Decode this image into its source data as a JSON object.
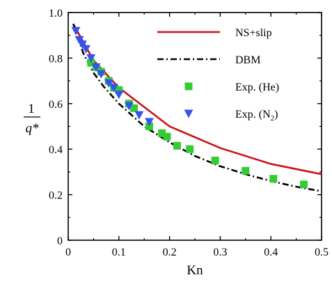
{
  "chart_data": {
    "type": "line",
    "xlabel": "Kn",
    "ylabel_numerator": "1",
    "ylabel_denominator": "q*",
    "xlim": [
      0,
      0.5
    ],
    "ylim": [
      0,
      1.0
    ],
    "x_ticks": [
      "0",
      "0.1",
      "0.2",
      "0.3",
      "0.4",
      "0.5"
    ],
    "y_ticks": [
      "0",
      "0.2",
      "0.4",
      "0.6",
      "0.8",
      "1.0"
    ],
    "legend_position": "top-right",
    "grid": false,
    "series": [
      {
        "name": "NS+slip",
        "style": "line",
        "color": "#cc1111",
        "x": [
          0.01,
          0.05,
          0.1,
          0.2,
          0.3,
          0.4,
          0.5
        ],
        "y": [
          0.95,
          0.79,
          0.67,
          0.5,
          0.405,
          0.335,
          0.29
        ]
      },
      {
        "name": "DBM",
        "style": "dash-dot",
        "color": "#000000",
        "x": [
          0.01,
          0.03,
          0.05,
          0.07,
          0.1,
          0.15,
          0.2,
          0.25,
          0.3,
          0.35,
          0.4,
          0.45,
          0.5
        ],
        "y": [
          0.95,
          0.82,
          0.735,
          0.675,
          0.6,
          0.5,
          0.43,
          0.37,
          0.325,
          0.29,
          0.26,
          0.235,
          0.215
        ]
      },
      {
        "name": "Exp. (He)",
        "style": "square",
        "color": "#33cc33",
        "x": [
          0.045,
          0.055,
          0.065,
          0.08,
          0.09,
          0.1,
          0.12,
          0.13,
          0.16,
          0.185,
          0.195,
          0.215,
          0.24,
          0.29,
          0.35,
          0.405,
          0.465
        ],
        "y": [
          0.78,
          0.76,
          0.74,
          0.7,
          0.67,
          0.66,
          0.6,
          0.58,
          0.5,
          0.47,
          0.455,
          0.415,
          0.4,
          0.35,
          0.305,
          0.27,
          0.245
        ]
      },
      {
        "name": "Exp. (N₂)",
        "style": "triangle-down",
        "color": "#3355ee",
        "x": [
          0.015,
          0.022,
          0.028,
          0.035,
          0.045,
          0.055,
          0.065,
          0.08,
          0.09,
          0.1,
          0.12,
          0.14,
          0.16
        ],
        "y": [
          0.92,
          0.88,
          0.86,
          0.84,
          0.8,
          0.76,
          0.73,
          0.69,
          0.67,
          0.64,
          0.59,
          0.55,
          0.52
        ]
      }
    ]
  }
}
